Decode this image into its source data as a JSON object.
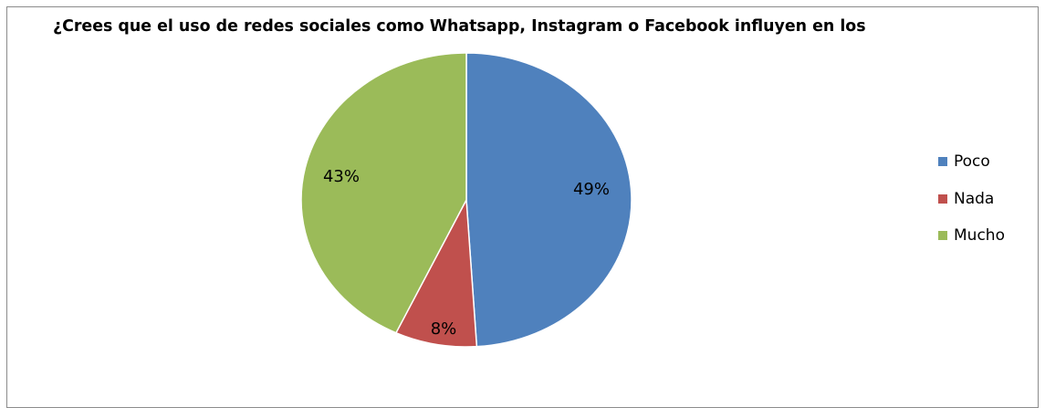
{
  "chart_data": {
    "type": "pie",
    "title": "¿Crees que el uso de redes sociales como Whatsapp,  Instagram o Facebook influyen en los",
    "slices": [
      {
        "label": "Poco",
        "value": 49,
        "display": "49%",
        "color": "#4f81bd"
      },
      {
        "label": "Nada",
        "value": 8,
        "display": "8%",
        "color": "#c0504d"
      },
      {
        "label": "Mucho",
        "value": 43,
        "display": "43%",
        "color": "#9bbb59"
      }
    ],
    "legend_position": "right"
  }
}
